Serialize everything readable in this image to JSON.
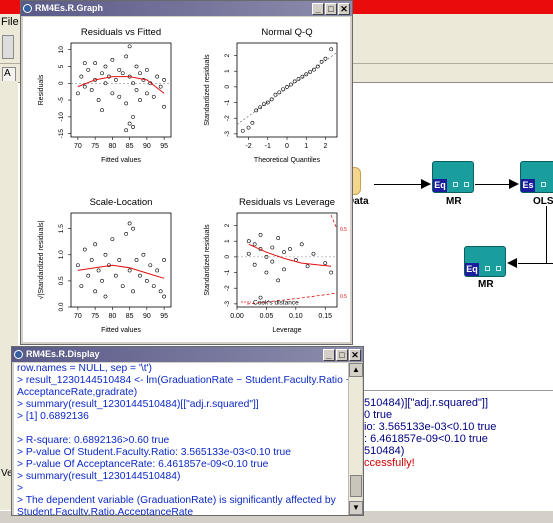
{
  "background_app": {
    "menu_file": "File",
    "tab_label": "A",
    "bottom_left_label": "Ver",
    "data_node_label": "n Data",
    "nodes": [
      {
        "tag": "Eq",
        "label": "MR"
      },
      {
        "tag": "Es",
        "label": "OLS"
      },
      {
        "tag": "Eq",
        "label": "MR"
      }
    ],
    "console_lines": [
      {
        "text": "510484)][\"adj.r.squared\"]]",
        "style": "normal"
      },
      {
        "text": "0  true",
        "style": "normal"
      },
      {
        "text": "io: 3.565133e-03<0.10  true",
        "style": "normal"
      },
      {
        "text": ": 6.461857e-09<0.10  true",
        "style": "normal"
      },
      {
        "text": "510484)",
        "style": "normal"
      },
      {
        "text": "ccessfully!",
        "style": "error"
      }
    ]
  },
  "graph_window": {
    "title": "RM4Es.R.Graph",
    "buttons": {
      "minimize": "_",
      "maximize": "□",
      "close": "✕"
    },
    "plots": {
      "residuals_vs_fitted": {
        "title": "Residuals vs Fitted",
        "xlabel": "Fitted values",
        "ylabel": "Residuals",
        "xticks": [
          "70",
          "75",
          "80",
          "85",
          "90",
          "95"
        ],
        "yticks": [
          "-15",
          "-10",
          "-5",
          "0",
          "5",
          "10"
        ]
      },
      "normal_qq": {
        "title": "Normal Q-Q",
        "xlabel": "Theoretical Quantiles",
        "ylabel": "Standardized residuals",
        "xticks": [
          "-2",
          "-1",
          "0",
          "1",
          "2"
        ],
        "yticks": [
          "-3",
          "-2",
          "-1",
          "0",
          "1",
          "2"
        ]
      },
      "scale_location": {
        "title": "Scale-Location",
        "xlabel": "Fitted values",
        "ylabel": "√|Standardized residuals|",
        "xticks": [
          "70",
          "75",
          "80",
          "85",
          "90",
          "95"
        ],
        "yticks": [
          "0.0",
          "0.5",
          "1.0",
          "1.5"
        ]
      },
      "residuals_vs_leverage": {
        "title": "Residuals vs Leverage",
        "xlabel": "Leverage",
        "ylabel": "Standardized residuals",
        "xticks": [
          "0.00",
          "0.05",
          "0.10",
          "0.15"
        ],
        "yticks": [
          "-3",
          "-2",
          "-1",
          "0",
          "1",
          "2"
        ],
        "legend": "Cook's distance",
        "contour_labels": [
          "0.5",
          "0.5"
        ]
      }
    }
  },
  "display_window": {
    "title": "RM4Es.R.Display",
    "buttons": {
      "minimize": "_",
      "maximize": "□",
      "close": "✕"
    },
    "lines": [
      "row.names = NULL, sep = '\\t')",
      "> result_1230144510484 <- lm(GraduationRate ~ Student.Faculty.Ratio +",
      "AcceptanceRate,gradrate)",
      "> summary(result_1230144510484)[[\"adj.r.squared\"]]",
      "> [1] 0.6892136",
      "",
      "> R-square: 0.6892136>0.60  true",
      "> P-value Of Student.Faculty.Ratio: 3.565133e-03<0.10  true",
      "> P-value Of AcceptanceRate: 6.461857e-09<0.10  true",
      "> summary(result_1230144510484)",
      ">",
      "> The dependent variable (GraduationRate) is significantly affected by",
      "Student.Faculty.Ratio,AcceptanceRate",
      ">"
    ]
  },
  "colors": {
    "title_accent": "#ea0c0c",
    "node_fill": "#1a9d9d",
    "node_tag": "#1b1e9c",
    "console_text": "#0a28c8",
    "fit_line": "#e01010"
  },
  "chart_data": [
    {
      "type": "scatter",
      "title": "Residuals vs Fitted",
      "xlabel": "Fitted values",
      "ylabel": "Residuals",
      "xlim": [
        68,
        97
      ],
      "ylim": [
        -16,
        12
      ],
      "points": [
        [
          70,
          -3
        ],
        [
          71,
          2
        ],
        [
          72,
          -1
        ],
        [
          73,
          4
        ],
        [
          74,
          -2
        ],
        [
          75,
          1
        ],
        [
          75,
          6
        ],
        [
          76,
          -5
        ],
        [
          77,
          3
        ],
        [
          77,
          -8
        ],
        [
          78,
          0
        ],
        [
          78,
          5
        ],
        [
          79,
          2
        ],
        [
          80,
          -3
        ],
        [
          80,
          7
        ],
        [
          81,
          1
        ],
        [
          82,
          -4
        ],
        [
          82,
          4
        ],
        [
          83,
          3
        ],
        [
          84,
          -6
        ],
        [
          84,
          8
        ],
        [
          85,
          -12
        ],
        [
          85,
          2
        ],
        [
          85,
          11
        ],
        [
          86,
          -13
        ],
        [
          86,
          0
        ],
        [
          87,
          5
        ],
        [
          87,
          -2
        ],
        [
          88,
          3
        ],
        [
          88,
          -5
        ],
        [
          89,
          1
        ],
        [
          90,
          -3
        ],
        [
          90,
          4
        ],
        [
          91,
          0
        ],
        [
          92,
          -4
        ],
        [
          93,
          2
        ],
        [
          94,
          -1
        ],
        [
          95,
          -7
        ],
        [
          95,
          1
        ],
        [
          84,
          -14
        ],
        [
          86,
          -10
        ],
        [
          72,
          6
        ]
      ],
      "smooth": [
        [
          70,
          -1
        ],
        [
          75,
          1
        ],
        [
          80,
          2
        ],
        [
          85,
          2
        ],
        [
          90,
          1
        ],
        [
          95,
          -3
        ]
      ]
    },
    {
      "type": "scatter",
      "title": "Normal Q-Q",
      "xlabel": "Theoretical Quantiles",
      "ylabel": "Standardized residuals",
      "xlim": [
        -2.6,
        2.6
      ],
      "ylim": [
        -3.2,
        2.8
      ],
      "points": [
        [
          -2.3,
          -2.8
        ],
        [
          -2.0,
          -2.6
        ],
        [
          -1.8,
          -2.3
        ],
        [
          -1.6,
          -1.5
        ],
        [
          -1.4,
          -1.3
        ],
        [
          -1.2,
          -1.1
        ],
        [
          -1.0,
          -1.0
        ],
        [
          -0.8,
          -0.8
        ],
        [
          -0.6,
          -0.5
        ],
        [
          -0.4,
          -0.35
        ],
        [
          -0.2,
          -0.15
        ],
        [
          0.0,
          0.0
        ],
        [
          0.2,
          0.15
        ],
        [
          0.4,
          0.35
        ],
        [
          0.6,
          0.5
        ],
        [
          0.8,
          0.65
        ],
        [
          1.0,
          0.8
        ],
        [
          1.2,
          0.95
        ],
        [
          1.4,
          1.1
        ],
        [
          1.6,
          1.3
        ],
        [
          1.8,
          1.6
        ],
        [
          2.0,
          1.8
        ],
        [
          2.3,
          2.4
        ]
      ],
      "reference_line": [
        [
          -2.6,
          -2.4
        ],
        [
          2.6,
          2.2
        ]
      ]
    },
    {
      "type": "scatter",
      "title": "Scale-Location",
      "xlabel": "Fitted values",
      "ylabel": "√|Standardized residuals|",
      "xlim": [
        68,
        97
      ],
      "ylim": [
        0,
        1.8
      ],
      "points": [
        [
          70,
          0.8
        ],
        [
          71,
          0.4
        ],
        [
          72,
          1.1
        ],
        [
          73,
          0.6
        ],
        [
          74,
          0.9
        ],
        [
          75,
          0.3
        ],
        [
          75,
          1.2
        ],
        [
          76,
          0.7
        ],
        [
          77,
          0.5
        ],
        [
          78,
          1.0
        ],
        [
          78,
          0.2
        ],
        [
          79,
          0.8
        ],
        [
          80,
          1.3
        ],
        [
          81,
          0.6
        ],
        [
          82,
          0.9
        ],
        [
          83,
          0.4
        ],
        [
          84,
          1.4
        ],
        [
          85,
          1.6
        ],
        [
          85,
          0.7
        ],
        [
          86,
          1.5
        ],
        [
          86,
          0.3
        ],
        [
          87,
          0.9
        ],
        [
          88,
          0.6
        ],
        [
          89,
          1.0
        ],
        [
          90,
          0.5
        ],
        [
          91,
          0.8
        ],
        [
          92,
          0.4
        ],
        [
          93,
          0.7
        ],
        [
          94,
          0.3
        ],
        [
          95,
          0.9
        ],
        [
          95,
          0.2
        ]
      ],
      "smooth": [
        [
          70,
          0.7
        ],
        [
          75,
          0.75
        ],
        [
          80,
          0.8
        ],
        [
          85,
          0.75
        ],
        [
          90,
          0.65
        ],
        [
          95,
          0.55
        ]
      ]
    },
    {
      "type": "scatter",
      "title": "Residuals vs Leverage",
      "xlabel": "Leverage",
      "ylabel": "Standardized residuals",
      "xlim": [
        0,
        0.17
      ],
      "ylim": [
        -3.2,
        2.8
      ],
      "points": [
        [
          0.02,
          1.0
        ],
        [
          0.02,
          0.2
        ],
        [
          0.03,
          0.8
        ],
        [
          0.03,
          -0.5
        ],
        [
          0.04,
          1.4
        ],
        [
          0.04,
          0.5
        ],
        [
          0.05,
          0.0
        ],
        [
          0.05,
          -1.0
        ],
        [
          0.06,
          0.6
        ],
        [
          0.06,
          -0.3
        ],
        [
          0.07,
          1.2
        ],
        [
          0.07,
          -1.5
        ],
        [
          0.08,
          0.3
        ],
        [
          0.08,
          -0.8
        ],
        [
          0.09,
          0.5
        ],
        [
          0.1,
          -0.2
        ],
        [
          0.11,
          0.8
        ],
        [
          0.12,
          -0.6
        ],
        [
          0.13,
          0.2
        ],
        [
          0.15,
          -0.4
        ],
        [
          0.16,
          -1.0
        ],
        [
          0.04,
          -2.6
        ]
      ],
      "smooth": [
        [
          0.02,
          0.8
        ],
        [
          0.05,
          0.3
        ],
        [
          0.08,
          -0.1
        ],
        [
          0.11,
          -0.4
        ],
        [
          0.16,
          -0.6
        ]
      ]
    }
  ]
}
